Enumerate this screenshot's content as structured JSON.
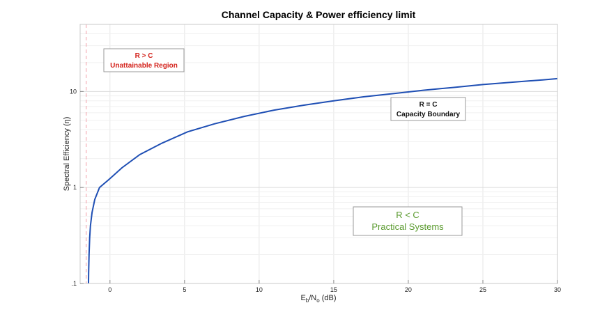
{
  "chart_data": {
    "type": "line",
    "title": "Channel Capacity & Power efficiency limit",
    "xlabel": {
      "main": "E",
      "sub1": "b",
      "mid": "/N",
      "sub2": "o",
      "tail": " (dB)"
    },
    "ylabel": "Spectral Efficiency (η)",
    "xlim": [
      -2,
      30
    ],
    "ylim": [
      0.1,
      50
    ],
    "yscale": "log",
    "grid": true,
    "x_ticks": [
      0,
      5,
      10,
      15,
      20,
      25,
      30
    ],
    "x_tick_labels": [
      "0",
      "5",
      "10",
      "15",
      "20",
      "25",
      "30"
    ],
    "y_ticks": [
      0.1,
      1,
      10
    ],
    "y_tick_labels": [
      ".1",
      "1",
      "10"
    ],
    "series": [
      {
        "color": "#1f4fb4",
        "x": [
          -1.44,
          -1.43,
          -1.4,
          -1.36,
          -1.31,
          -1.2,
          -1.02,
          -0.7,
          -0.1,
          0.8,
          2.0,
          3.5,
          5.2,
          7.0,
          9.0,
          11.0,
          13.0,
          15.0,
          17.0,
          19.0,
          21.0,
          23.0,
          25.0,
          27.0,
          29.0,
          30.0
        ],
        "y": [
          0.1,
          0.13,
          0.2,
          0.3,
          0.4,
          0.55,
          0.75,
          1.0,
          1.2,
          1.6,
          2.2,
          2.9,
          3.8,
          4.6,
          5.5,
          6.4,
          7.2,
          8.0,
          8.8,
          9.5,
          10.3,
          11.0,
          11.8,
          12.5,
          13.2,
          13.6
        ]
      }
    ],
    "shannon_limit": {
      "x": -1.59,
      "color": "#f2a0a8"
    },
    "annotations": [
      {
        "id": "unattainable",
        "line1": "R > C",
        "line2": "Unattainable Region",
        "color": "#d4231c"
      },
      {
        "id": "boundary",
        "line1": "R = C",
        "line2": "Capacity Boundary",
        "color": "#111111"
      },
      {
        "id": "practical",
        "line1": "R < C",
        "line2": "Practical Systems",
        "color": "#5a9a2e"
      }
    ]
  }
}
